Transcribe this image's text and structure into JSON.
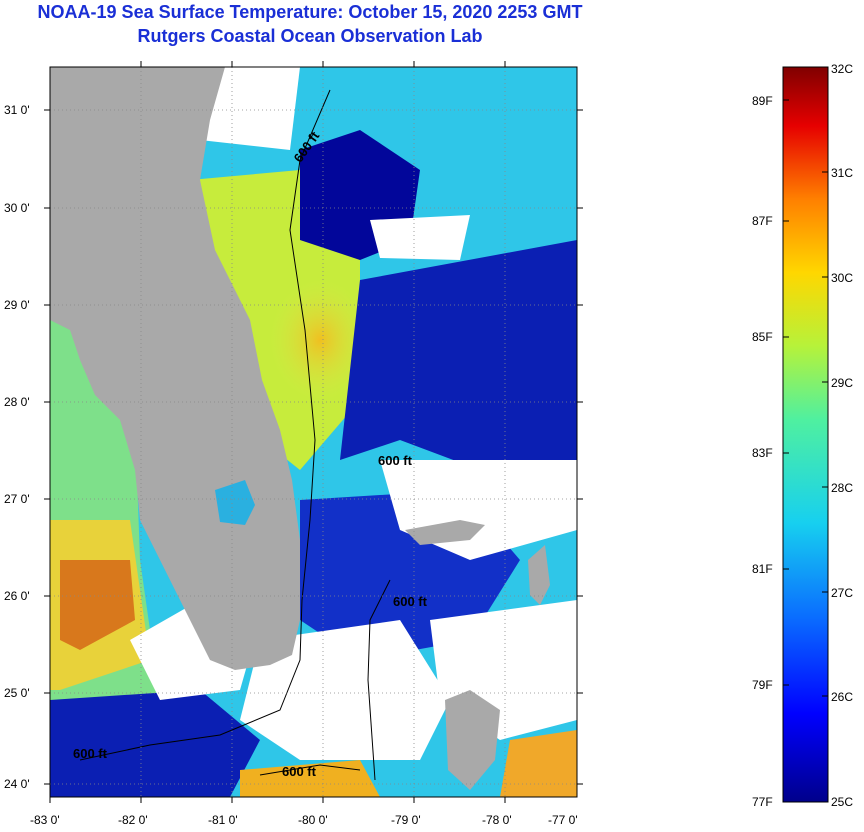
{
  "header": {
    "title": "NOAA-19 Sea Surface Temperature:  October 15, 2020 2253 GMT",
    "subtitle": "Rutgers Coastal Ocean Observation Lab"
  },
  "map": {
    "region": "Florida peninsula and Bahamas",
    "lat_labels": [
      "31 0'",
      "30 0'",
      "29 0'",
      "28 0'",
      "27 0'",
      "26 0'",
      "25 0'",
      "24 0'"
    ],
    "lon_labels": [
      "-83 0'",
      "-82 0'",
      "-81 0'",
      "-80 0'",
      "-79 0'",
      "-78 0'",
      "-77 0'"
    ],
    "lat_range": [
      23.9,
      31.4
    ],
    "lon_range": [
      -83,
      -76.8
    ],
    "contour_labels": [
      "600 ft",
      "600 ft",
      "600 ft",
      "600 ft",
      "600 ft"
    ],
    "colors": {
      "land": "#a9a9a9",
      "cloud": "#ffffff",
      "cold": "#00008b",
      "warm": "#ff8c00"
    }
  },
  "colorbar": {
    "celsius": [
      "32C",
      "31C",
      "30C",
      "29C",
      "28C",
      "27C",
      "26C",
      "25C"
    ],
    "fahrenheit": [
      "89F",
      "87F",
      "85F",
      "83F",
      "81F",
      "79F",
      "77F"
    ],
    "range_c": [
      25,
      32
    ]
  }
}
